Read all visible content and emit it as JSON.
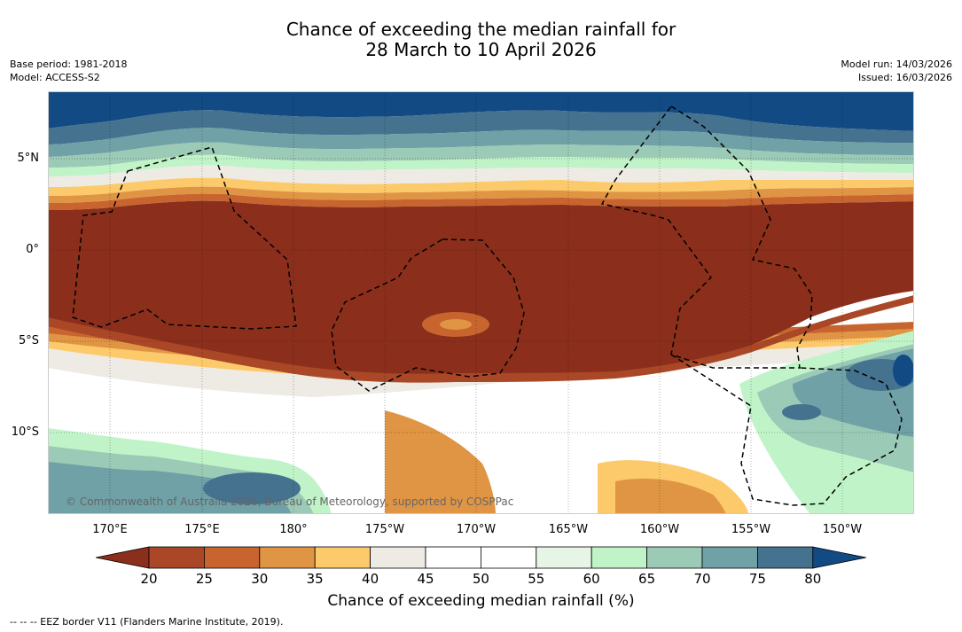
{
  "title": {
    "line1": "Chance of exceeding the median rainfall for",
    "line2": "28 March to 10 April 2026"
  },
  "meta": {
    "base_period": "Base period: 1981-2018",
    "model": "Model: ACCESS-S2",
    "model_run": "Model run: 14/03/2026",
    "issued": "Issued: 16/03/2026"
  },
  "map": {
    "copyright": "© Commonwealth of Australia 2026, Bureau of Meteorology, supported by COSPPac",
    "lat_labels": [
      "5°N",
      "0°",
      "5°S",
      "10°S"
    ],
    "lon_labels": [
      "170°E",
      "175°E",
      "180°",
      "175°W",
      "170°W",
      "165°W",
      "160°W",
      "155°W",
      "150°W"
    ]
  },
  "colorbar": {
    "ticks": [
      "20",
      "25",
      "30",
      "35",
      "40",
      "45",
      "50",
      "55",
      "60",
      "65",
      "70",
      "75",
      "80"
    ],
    "label": "Chance of exceeding median rainfall (%)",
    "colors": [
      "#8b2f1c",
      "#aa4726",
      "#c8652f",
      "#e09545",
      "#fcca6a",
      "#eeeae4",
      "#ffffff",
      "#ffffff",
      "#e6f5e6",
      "#c0f4c8",
      "#9bcab6",
      "#6fa1a6",
      "#44728f",
      "#124a84"
    ]
  },
  "footer": {
    "legend": "--  --  -- EEZ border V11 (Flanders Marine Institute, 2019)."
  }
}
